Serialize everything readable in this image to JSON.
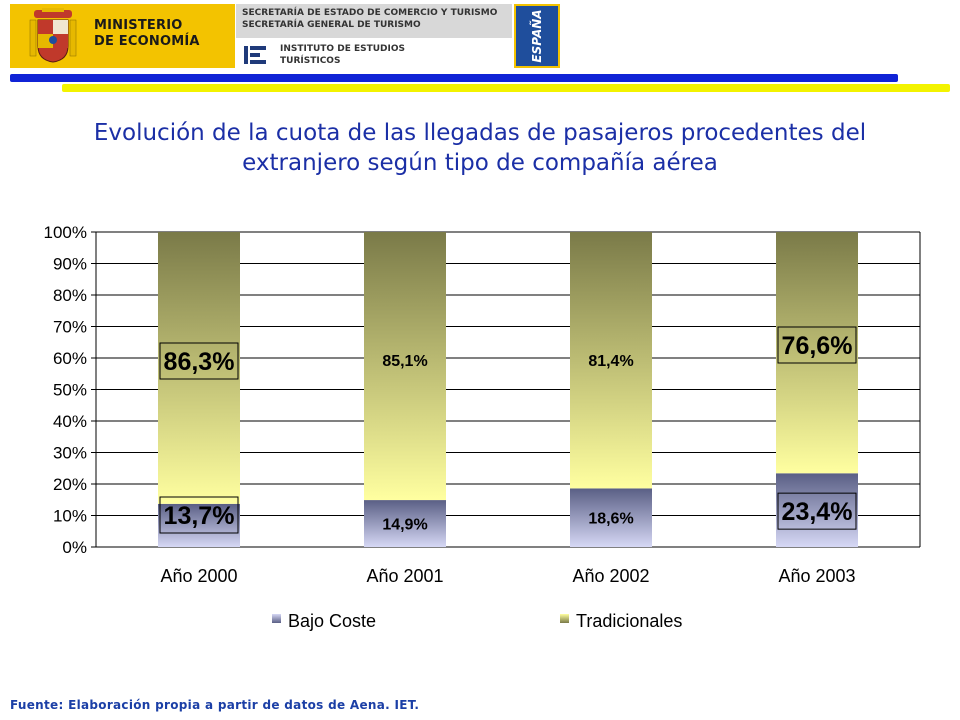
{
  "header": {
    "ministry_line1": "MINISTERIO",
    "ministry_line2": "DE ECONOMÍA",
    "secretariat_line1": "SECRETARÍA DE ESTADO DE COMERCIO Y TURISMO",
    "secretariat_line2": "SECRETARÍA GENERAL DE TURISMO",
    "institute_line1": "INSTITUTO DE ESTUDIOS",
    "institute_line2": "TURÍSTICOS",
    "espana": "ESPAÑA",
    "colors": {
      "ministry_bg": "#f3c300",
      "rule_blue": "#1023d6",
      "rule_yellow": "#f3f300",
      "espana_bg": "#1f4e9c"
    }
  },
  "title_line1": "Evolución de la cuota de las llegadas de pasajeros procedentes del",
  "title_line2": "extranjero según tipo de compañía aérea",
  "source": "Fuente: Elaboración propia a partir de datos de Aena. IET.",
  "chart_data": {
    "type": "bar",
    "stacked": true,
    "percent": true,
    "categories": [
      "Año 2000",
      "Año 2001",
      "Año 2002",
      "Año 2003"
    ],
    "series": [
      {
        "name": "Bajo Coste",
        "values": [
          13.7,
          14.9,
          18.6,
          23.4
        ],
        "labels": [
          "13,7%",
          "14,9%",
          "18,6%",
          "23,4%"
        ],
        "color": "#5a5f85",
        "color_light": "#d6d8f5"
      },
      {
        "name": "Tradicionales",
        "values": [
          86.3,
          85.1,
          81.4,
          76.6
        ],
        "labels": [
          "86,3%",
          "85,1%",
          "81,4%",
          "76,6%"
        ],
        "color": "#7a7a48",
        "color_light": "#ffffa0"
      }
    ],
    "highlighted_categories": [
      "Año 2000",
      "Año 2003"
    ],
    "yticks": [
      "0%",
      "10%",
      "20%",
      "30%",
      "40%",
      "50%",
      "60%",
      "70%",
      "80%",
      "90%",
      "100%"
    ],
    "ylim": [
      0,
      100
    ],
    "grid": true,
    "legend_position": "bottom"
  }
}
